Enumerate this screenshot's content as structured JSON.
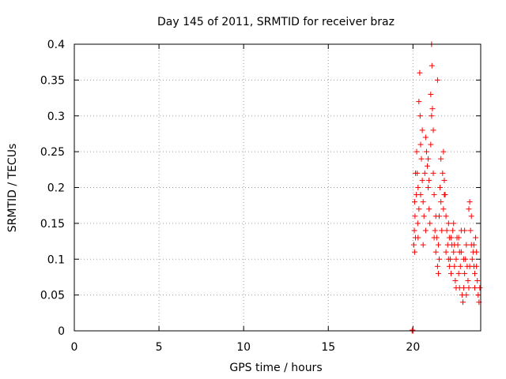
{
  "chart_data": {
    "type": "scatter",
    "title": "Day 145 of 2011, SRMTID for receiver braz",
    "xlabel": "GPS time / hours",
    "ylabel": "SRMTID / TECUs",
    "xlim": [
      0,
      24
    ],
    "ylim": [
      0,
      0.4
    ],
    "xticks": [
      0,
      5,
      10,
      15,
      20
    ],
    "xtick_labels": [
      "0",
      "5",
      "10",
      "15",
      "20"
    ],
    "yticks": [
      0,
      0.05,
      0.1,
      0.15,
      0.2,
      0.25,
      0.3,
      0.35,
      0.4
    ],
    "ytick_labels": [
      "0",
      "0.05",
      "0.1",
      "0.15",
      "0.2",
      "0.25",
      "0.3",
      "0.35",
      "0.4"
    ],
    "grid": true,
    "marker": "+",
    "color": "#ff0000",
    "series": [
      {
        "name": "SRMTID",
        "points": [
          [
            19.95,
            0.0
          ],
          [
            20.0,
            0.0
          ],
          [
            19.97,
            0.001
          ],
          [
            20.05,
            0.12
          ],
          [
            20.08,
            0.14
          ],
          [
            20.1,
            0.18
          ],
          [
            20.12,
            0.16
          ],
          [
            20.15,
            0.13
          ],
          [
            20.1,
            0.11
          ],
          [
            20.2,
            0.19
          ],
          [
            20.22,
            0.25
          ],
          [
            20.25,
            0.22
          ],
          [
            20.3,
            0.2
          ],
          [
            20.28,
            0.15
          ],
          [
            20.35,
            0.17
          ],
          [
            20.4,
            0.36
          ],
          [
            20.42,
            0.3
          ],
          [
            20.45,
            0.26
          ],
          [
            20.5,
            0.24
          ],
          [
            20.55,
            0.21
          ],
          [
            20.6,
            0.18
          ],
          [
            20.65,
            0.16
          ],
          [
            20.7,
            0.22
          ],
          [
            20.75,
            0.27
          ],
          [
            20.8,
            0.25
          ],
          [
            20.85,
            0.23
          ],
          [
            20.9,
            0.2
          ],
          [
            20.95,
            0.17
          ],
          [
            21.0,
            0.15
          ],
          [
            21.05,
            0.33
          ],
          [
            21.1,
            0.4
          ],
          [
            21.12,
            0.37
          ],
          [
            21.15,
            0.31
          ],
          [
            21.2,
            0.28
          ],
          [
            21.25,
            0.19
          ],
          [
            21.3,
            0.14
          ],
          [
            21.35,
            0.11
          ],
          [
            21.4,
            0.13
          ],
          [
            21.45,
            0.09
          ],
          [
            21.5,
            0.12
          ],
          [
            21.55,
            0.16
          ],
          [
            21.6,
            0.2
          ],
          [
            21.65,
            0.18
          ],
          [
            21.7,
            0.14
          ],
          [
            21.75,
            0.22
          ],
          [
            21.8,
            0.25
          ],
          [
            21.85,
            0.21
          ],
          [
            21.9,
            0.19
          ],
          [
            21.95,
            0.16
          ],
          [
            22.0,
            0.14
          ],
          [
            22.05,
            0.12
          ],
          [
            22.1,
            0.15
          ],
          [
            22.15,
            0.13
          ],
          [
            22.2,
            0.1
          ],
          [
            22.25,
            0.08
          ],
          [
            22.3,
            0.12
          ],
          [
            22.35,
            0.14
          ],
          [
            22.4,
            0.11
          ],
          [
            22.45,
            0.09
          ],
          [
            22.5,
            0.07
          ],
          [
            22.55,
            0.1
          ],
          [
            22.6,
            0.13
          ],
          [
            22.65,
            0.12
          ],
          [
            22.7,
            0.08
          ],
          [
            22.75,
            0.06
          ],
          [
            22.8,
            0.09
          ],
          [
            22.85,
            0.11
          ],
          [
            22.9,
            0.05
          ],
          [
            22.95,
            0.04
          ],
          [
            23.0,
            0.06
          ],
          [
            23.05,
            0.08
          ],
          [
            23.1,
            0.1
          ],
          [
            23.15,
            0.12
          ],
          [
            23.2,
            0.09
          ],
          [
            23.25,
            0.07
          ],
          [
            23.3,
            0.17
          ],
          [
            23.35,
            0.18
          ],
          [
            23.4,
            0.14
          ],
          [
            23.45,
            0.12
          ],
          [
            23.5,
            0.1
          ],
          [
            23.55,
            0.11
          ],
          [
            23.6,
            0.09
          ],
          [
            23.65,
            0.08
          ],
          [
            23.7,
            0.13
          ],
          [
            23.75,
            0.11
          ],
          [
            23.8,
            0.07
          ],
          [
            23.85,
            0.05
          ],
          [
            23.9,
            0.04
          ],
          [
            23.95,
            0.06
          ],
          [
            20.3,
            0.13
          ],
          [
            20.6,
            0.12
          ],
          [
            20.9,
            0.24
          ],
          [
            21.2,
            0.22
          ],
          [
            21.5,
            0.08
          ],
          [
            21.8,
            0.17
          ],
          [
            22.1,
            0.1
          ],
          [
            22.4,
            0.15
          ],
          [
            22.7,
            0.13
          ],
          [
            23.0,
            0.1
          ],
          [
            23.3,
            0.06
          ],
          [
            23.6,
            0.12
          ],
          [
            20.45,
            0.19
          ],
          [
            20.75,
            0.14
          ],
          [
            21.05,
            0.26
          ],
          [
            21.35,
            0.16
          ],
          [
            21.65,
            0.24
          ],
          [
            21.95,
            0.11
          ],
          [
            22.25,
            0.13
          ],
          [
            22.55,
            0.06
          ],
          [
            22.85,
            0.14
          ],
          [
            23.15,
            0.05
          ],
          [
            23.45,
            0.16
          ],
          [
            23.75,
            0.09
          ],
          [
            20.15,
            0.22
          ],
          [
            20.55,
            0.28
          ],
          [
            20.95,
            0.21
          ],
          [
            21.25,
            0.13
          ],
          [
            21.55,
            0.1
          ],
          [
            21.85,
            0.19
          ],
          [
            22.15,
            0.09
          ],
          [
            22.45,
            0.12
          ],
          [
            22.75,
            0.11
          ],
          [
            23.05,
            0.14
          ],
          [
            23.35,
            0.09
          ],
          [
            23.65,
            0.06
          ],
          [
            21.45,
            0.35
          ],
          [
            21.1,
            0.3
          ],
          [
            20.35,
            0.32
          ]
        ]
      }
    ]
  }
}
